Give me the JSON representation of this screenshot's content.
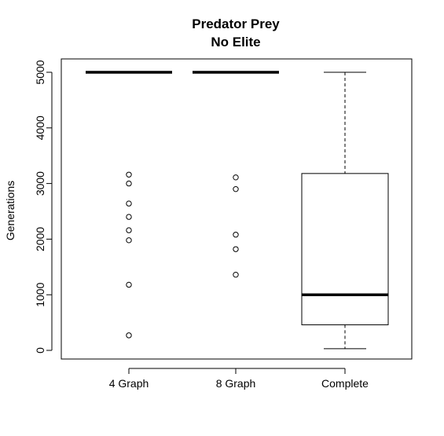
{
  "chart_data": {
    "type": "boxplot",
    "title": "Predator Prey",
    "subtitle": "No Elite",
    "xlabel": "",
    "ylabel": "Generations",
    "ylim": [
      -150,
      5200
    ],
    "yticks": [
      0,
      1000,
      2000,
      3000,
      4000,
      5000
    ],
    "ytick_labels": [
      "0",
      "1000",
      "2000",
      "3000",
      "4000",
      "5000"
    ],
    "categories": [
      "4 Graph",
      "8 Graph",
      "Complete"
    ],
    "boxes": [
      {
        "category": "4 Graph",
        "min": 5000,
        "q1": 5000,
        "median": 5000,
        "q3": 5000,
        "max": 5000,
        "outliers": [
          3160,
          3000,
          2640,
          2400,
          2160,
          1980,
          1180,
          270
        ]
      },
      {
        "category": "8 Graph",
        "min": 5000,
        "q1": 5000,
        "median": 5000,
        "q3": 5000,
        "max": 5000,
        "outliers": [
          3110,
          2900,
          2080,
          1820,
          1360
        ]
      },
      {
        "category": "Complete",
        "min": 30,
        "q1": 460,
        "median": 1000,
        "q3": 3180,
        "max": 5000,
        "outliers": []
      }
    ]
  }
}
